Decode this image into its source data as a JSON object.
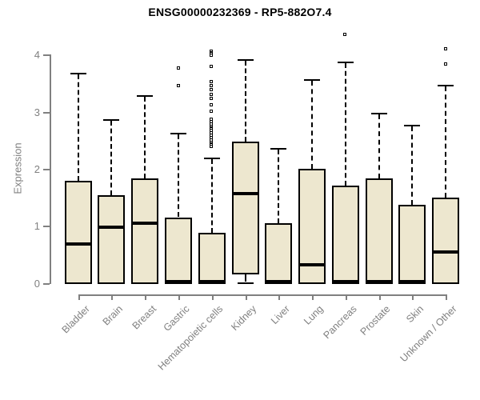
{
  "title": "ENSG00000232369 - RP5-882O7.4",
  "chart_data": {
    "type": "boxplot",
    "title": "ENSG00000232369 - RP5-882O7.4",
    "xlabel": "",
    "ylabel": "Expression",
    "ylim": [
      0,
      4
    ],
    "yticks": [
      0,
      1,
      2,
      3,
      4
    ],
    "grid": false,
    "legend": "none",
    "colors": {
      "box_fill": "#EDE7CF",
      "box_border": "#000000",
      "median": "#000000",
      "axis": "#808080",
      "tick_label": "#808080",
      "title": "#000000",
      "background": "#ffffff"
    },
    "categories": [
      "Bladder",
      "Brain",
      "Breast",
      "Gastric",
      "Hematopoietic cells",
      "Kidney",
      "Liver",
      "Lung",
      "Pancreas",
      "Prostate",
      "Skin",
      "Unknown / Other"
    ],
    "boxes": [
      {
        "category": "Bladder",
        "whisker_low": 0,
        "q1": 0,
        "median": 0.68,
        "q3": 1.79,
        "whisker_high": 3.67,
        "outliers": []
      },
      {
        "category": "Brain",
        "whisker_low": 0,
        "q1": 0,
        "median": 0.98,
        "q3": 1.54,
        "whisker_high": 2.85,
        "outliers": []
      },
      {
        "category": "Breast",
        "whisker_low": 0,
        "q1": 0,
        "median": 1.04,
        "q3": 1.83,
        "whisker_high": 3.27,
        "outliers": []
      },
      {
        "category": "Gastric",
        "whisker_low": 0,
        "q1": 0,
        "median": 0.02,
        "q3": 1.15,
        "whisker_high": 2.62,
        "outliers": [
          3.45,
          3.76
        ]
      },
      {
        "category": "Hematopoietic cells",
        "whisker_low": 0,
        "q1": 0,
        "median": 0.02,
        "q3": 0.87,
        "whisker_high": 2.18,
        "outliers": [
          2.38,
          2.42,
          2.46,
          2.5,
          2.54,
          2.58,
          2.62,
          2.66,
          2.7,
          2.74,
          2.78,
          2.82,
          2.86,
          3.0,
          3.12,
          3.22,
          3.3,
          3.38,
          3.45,
          3.52,
          3.79,
          3.98,
          4.02,
          4.05
        ]
      },
      {
        "category": "Kidney",
        "whisker_low": 0,
        "q1": 0.18,
        "median": 1.57,
        "q3": 2.48,
        "whisker_high": 3.9,
        "outliers": []
      },
      {
        "category": "Liver",
        "whisker_low": 0,
        "q1": 0,
        "median": 0.02,
        "q3": 1.05,
        "whisker_high": 2.35,
        "outliers": []
      },
      {
        "category": "Lung",
        "whisker_low": 0,
        "q1": 0,
        "median": 0.31,
        "q3": 2.0,
        "whisker_high": 3.55,
        "outliers": []
      },
      {
        "category": "Pancreas",
        "whisker_low": 0,
        "q1": 0,
        "median": 0.02,
        "q3": 1.7,
        "whisker_high": 3.86,
        "outliers": [
          4.35
        ]
      },
      {
        "category": "Prostate",
        "whisker_low": 0,
        "q1": 0,
        "median": 0.02,
        "q3": 1.83,
        "whisker_high": 2.97,
        "outliers": []
      },
      {
        "category": "Skin",
        "whisker_low": 0,
        "q1": 0,
        "median": 0.02,
        "q3": 1.37,
        "whisker_high": 2.76,
        "outliers": []
      },
      {
        "category": "Unknown / Other",
        "whisker_low": 0,
        "q1": 0,
        "median": 0.54,
        "q3": 1.49,
        "whisker_high": 3.46,
        "outliers": [
          3.83,
          4.09
        ]
      }
    ]
  }
}
